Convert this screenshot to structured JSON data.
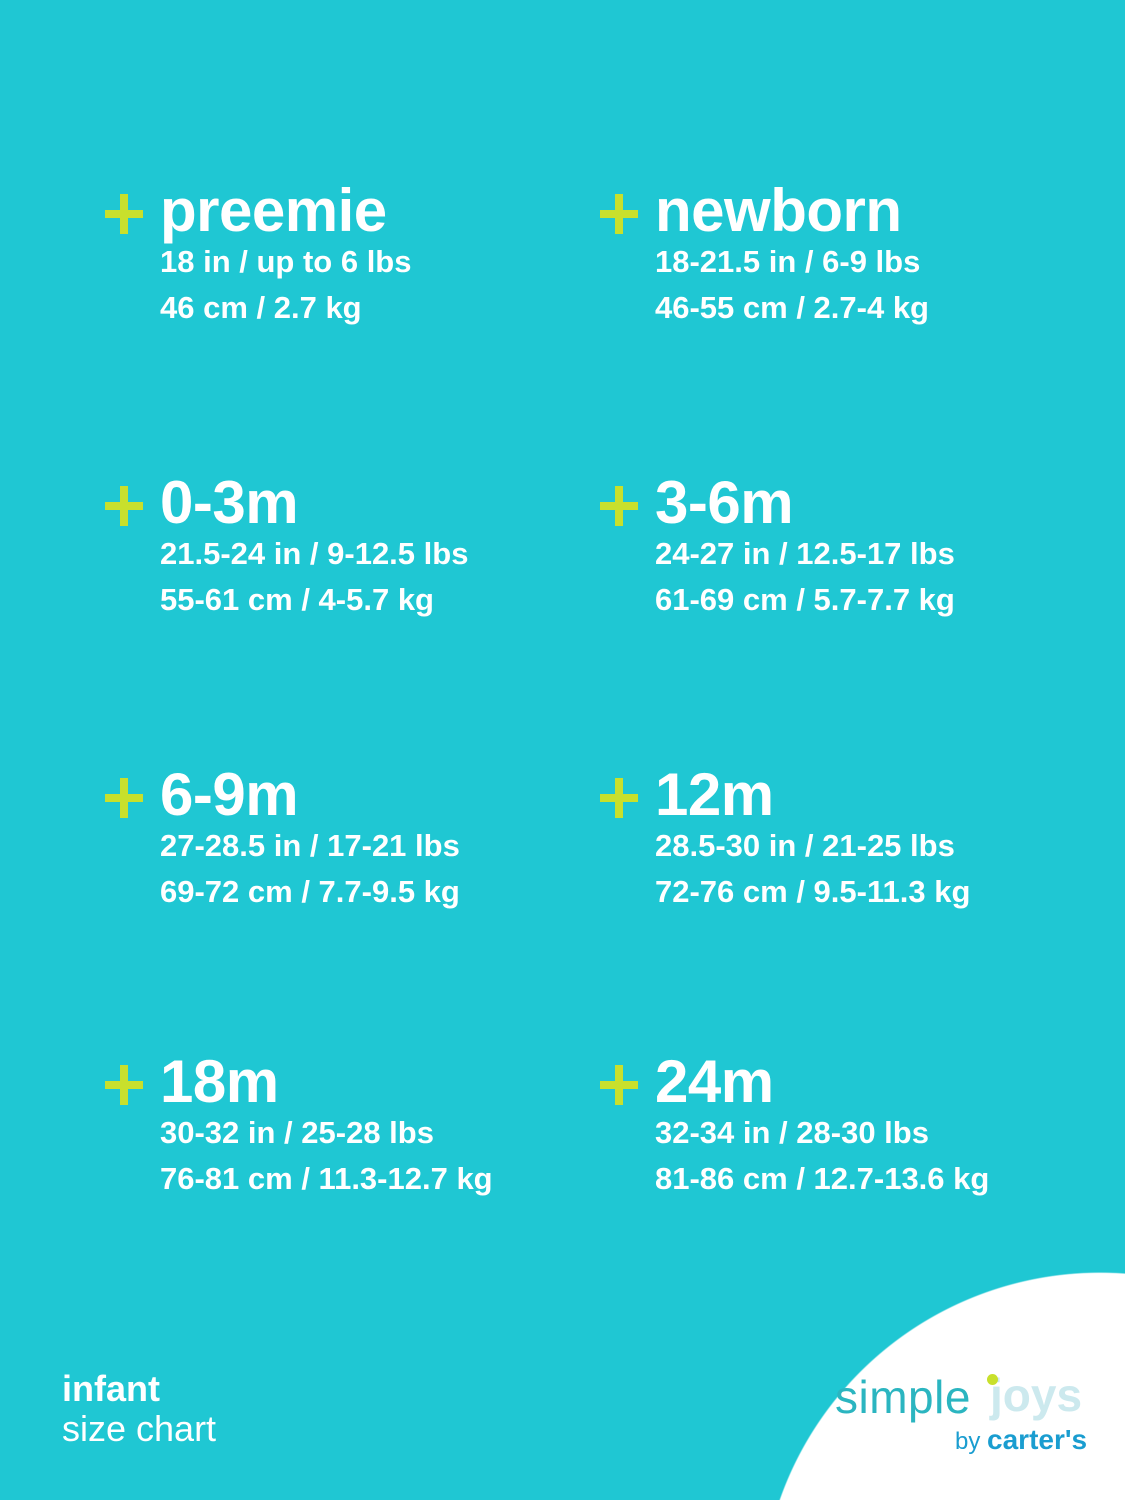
{
  "colors": {
    "background": "#1fc7d3",
    "plus": "#c8e02c",
    "text": "#ffffff"
  },
  "sizes": [
    {
      "title": "preemie",
      "line1": "18 in / up to 6 lbs",
      "line2": "46 cm / 2.7 kg"
    },
    {
      "title": "newborn",
      "line1": "18-21.5 in / 6-9 lbs",
      "line2": "46-55 cm / 2.7-4 kg"
    },
    {
      "title": "0-3m",
      "line1": "21.5-24 in / 9-12.5 lbs",
      "line2": "55-61 cm / 4-5.7 kg"
    },
    {
      "title": "3-6m",
      "line1": "24-27 in / 12.5-17 lbs",
      "line2": "61-69 cm / 5.7-7.7 kg"
    },
    {
      "title": "6-9m",
      "line1": "27-28.5 in / 17-21 lbs",
      "line2": "69-72 cm / 7.7-9.5 kg"
    },
    {
      "title": "12m",
      "line1": "28.5-30 in / 21-25 lbs",
      "line2": "72-76 cm / 9.5-11.3 kg"
    },
    {
      "title": "18m",
      "line1": "30-32 in / 25-28 lbs",
      "line2": "76-81 cm / 11.3-12.7 kg"
    },
    {
      "title": "24m",
      "line1": "32-34 in / 28-30 lbs",
      "line2": "81-86 cm / 12.7-13.6 kg"
    }
  ],
  "footer": {
    "line1": "infant",
    "line2": "size chart"
  },
  "logo": {
    "simple": "simple",
    "joys": "joys",
    "by": "by",
    "brand": "carter's"
  }
}
